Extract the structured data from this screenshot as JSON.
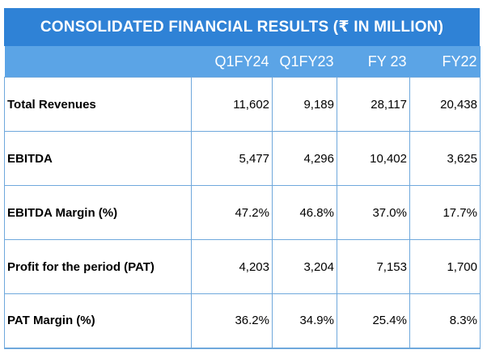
{
  "title": "CONSOLIDATED FINANCIAL RESULTS (₹ IN MILLION)",
  "columns": [
    "Q1FY24",
    "Q1FY23",
    "FY 23",
    "FY22"
  ],
  "rows": [
    {
      "label": "Total Revenues",
      "values": [
        "11,602",
        "9,189",
        "28,117",
        "20,438"
      ]
    },
    {
      "label": "EBITDA",
      "values": [
        "5,477",
        "4,296",
        "10,402",
        "3,625"
      ]
    },
    {
      "label": "EBITDA Margin (%)",
      "values": [
        "47.2%",
        "46.8%",
        "37.0%",
        "17.7%"
      ]
    },
    {
      "label": "Profit for the period (PAT)",
      "values": [
        "4,203",
        "3,204",
        "7,153",
        "1,700"
      ]
    },
    {
      "label": "PAT Margin (%)",
      "values": [
        "36.2%",
        "34.9%",
        "25.4%",
        "8.3%"
      ]
    }
  ]
}
